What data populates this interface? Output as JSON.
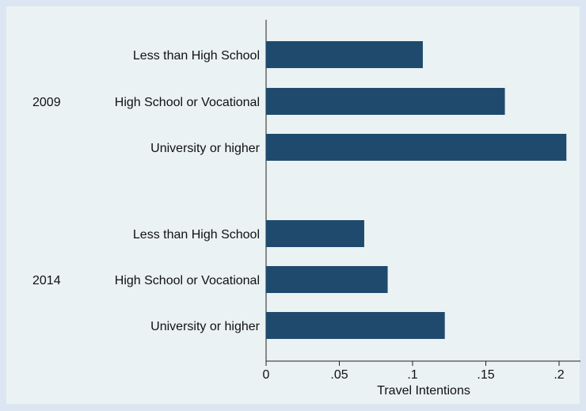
{
  "chart_data": {
    "type": "bar",
    "orientation": "horizontal",
    "groups": [
      {
        "label": "2009",
        "categories": [
          "Less than High School",
          "High School or Vocational",
          "University or higher"
        ],
        "values": [
          0.107,
          0.163,
          0.205
        ]
      },
      {
        "label": "2014",
        "categories": [
          "Less than High School",
          "High School or Vocational",
          "University or higher"
        ],
        "values": [
          0.067,
          0.083,
          0.122
        ]
      }
    ],
    "xlabel": "Travel Intentions",
    "xlim": [
      0,
      0.2
    ],
    "xticks": [
      {
        "value": 0,
        "label": "0"
      },
      {
        "value": 0.05,
        "label": ".05"
      },
      {
        "value": 0.1,
        "label": ".1"
      },
      {
        "value": 0.15,
        "label": ".15"
      },
      {
        "value": 0.2,
        "label": ".2"
      }
    ],
    "grid": false,
    "bar_color": "#1f4a6e"
  }
}
